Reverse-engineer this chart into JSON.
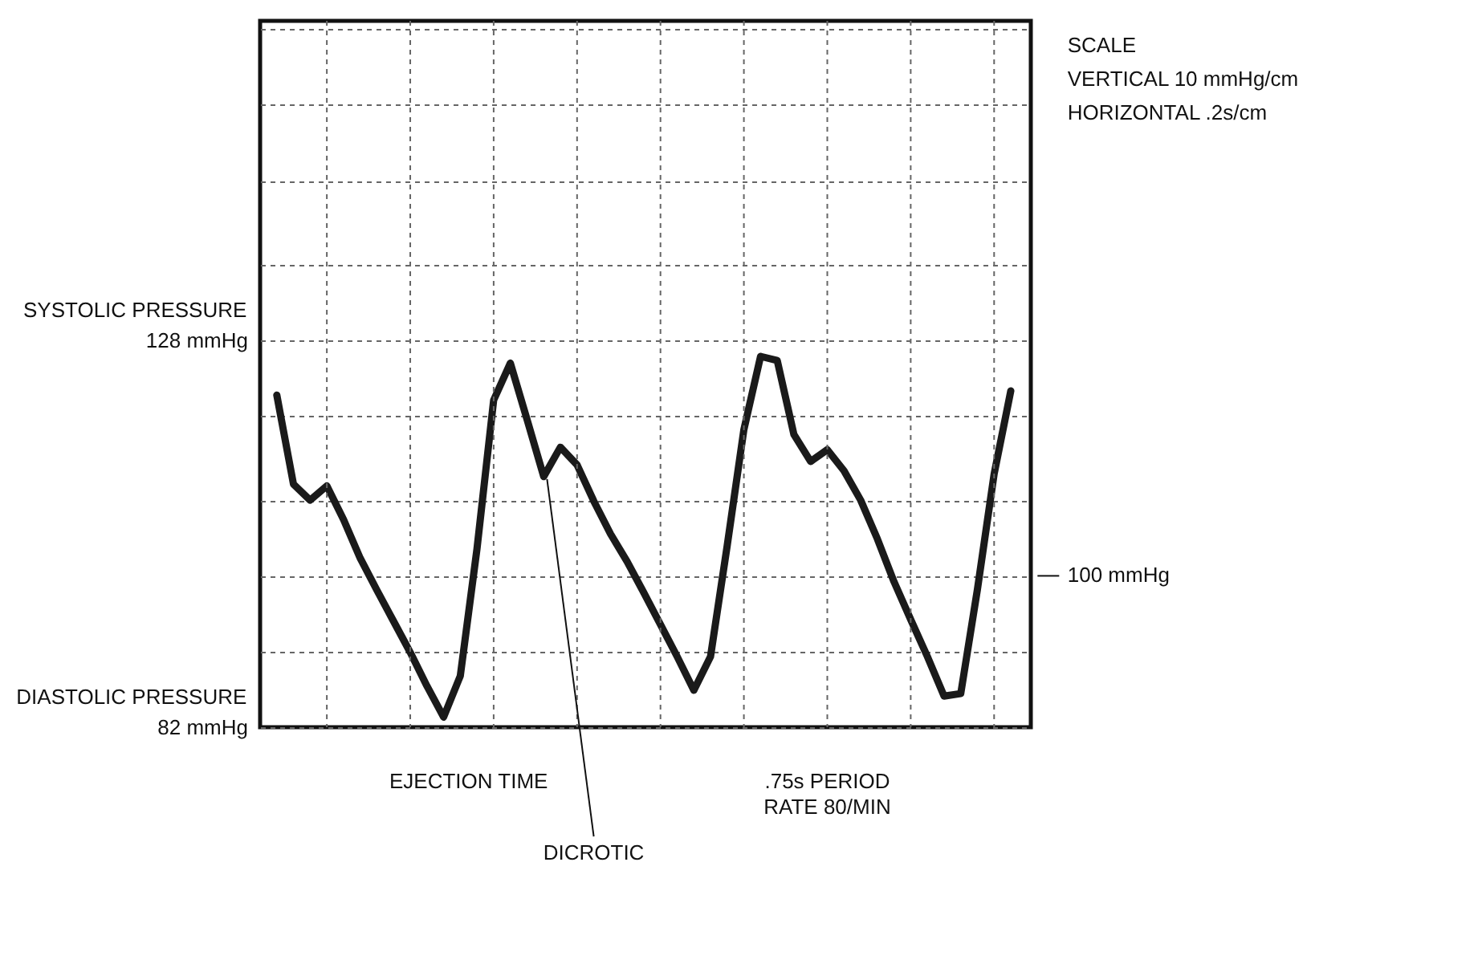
{
  "chart_data": {
    "type": "line",
    "categories": [
      null,
      null,
      null,
      null,
      null,
      null,
      null,
      null,
      null,
      null,
      null,
      null,
      null,
      null,
      null,
      null,
      null,
      null,
      null,
      null,
      null,
      null,
      null,
      null,
      null,
      null,
      null,
      null,
      null,
      null,
      null,
      null,
      null,
      null,
      null,
      null,
      null,
      null,
      null,
      null,
      null,
      null,
      null,
      null,
      null
    ],
    "ylim": [
      82,
      166
    ],
    "yticks": [
      {
        "value": 82,
        "label": "82 mmHg"
      },
      {
        "value": 91,
        "label": null
      },
      {
        "value": 100,
        "label": null
      },
      {
        "value": 109,
        "label": null
      },
      {
        "value": 119,
        "label": null
      },
      {
        "value": 128,
        "label": "128 mmHg"
      },
      {
        "value": 137,
        "label": null
      },
      {
        "value": 147,
        "label": null
      },
      {
        "value": 156,
        "label": null
      },
      {
        "value": 165,
        "label": null
      }
    ],
    "grid": true,
    "series": [
      {
        "color": "#1a1a1a",
        "values": [
          121.5,
          110.9,
          109.0,
          110.7,
          106.7,
          102.1,
          98.3,
          94.6,
          90.9,
          86.9,
          83.2,
          88.1,
          103.2,
          120.9,
          125.3,
          118.6,
          111.8,
          115.3,
          113.2,
          108.9,
          105.0,
          101.7,
          98.0,
          94.2,
          90.4,
          86.4,
          90.4,
          103.6,
          117.4,
          126.1,
          125.6,
          116.8,
          113.6,
          115.0,
          112.5,
          109.0,
          104.4,
          99.3,
          94.8,
          90.4,
          85.7,
          86.0,
          98.4,
          112.1,
          122.0
        ]
      }
    ],
    "annotations": [
      "SCALE",
      "VERTICAL 10 mmHg/cm",
      "HORIZONTAL .2s/cm",
      "EJECTION TIME",
      "DICROTIC",
      ".75s PERIOD",
      "RATE 80/MIN",
      "100 mmHg",
      "SYSTOLIC PRESSURE",
      "DIASTOLIC PRESSURE"
    ]
  }
}
